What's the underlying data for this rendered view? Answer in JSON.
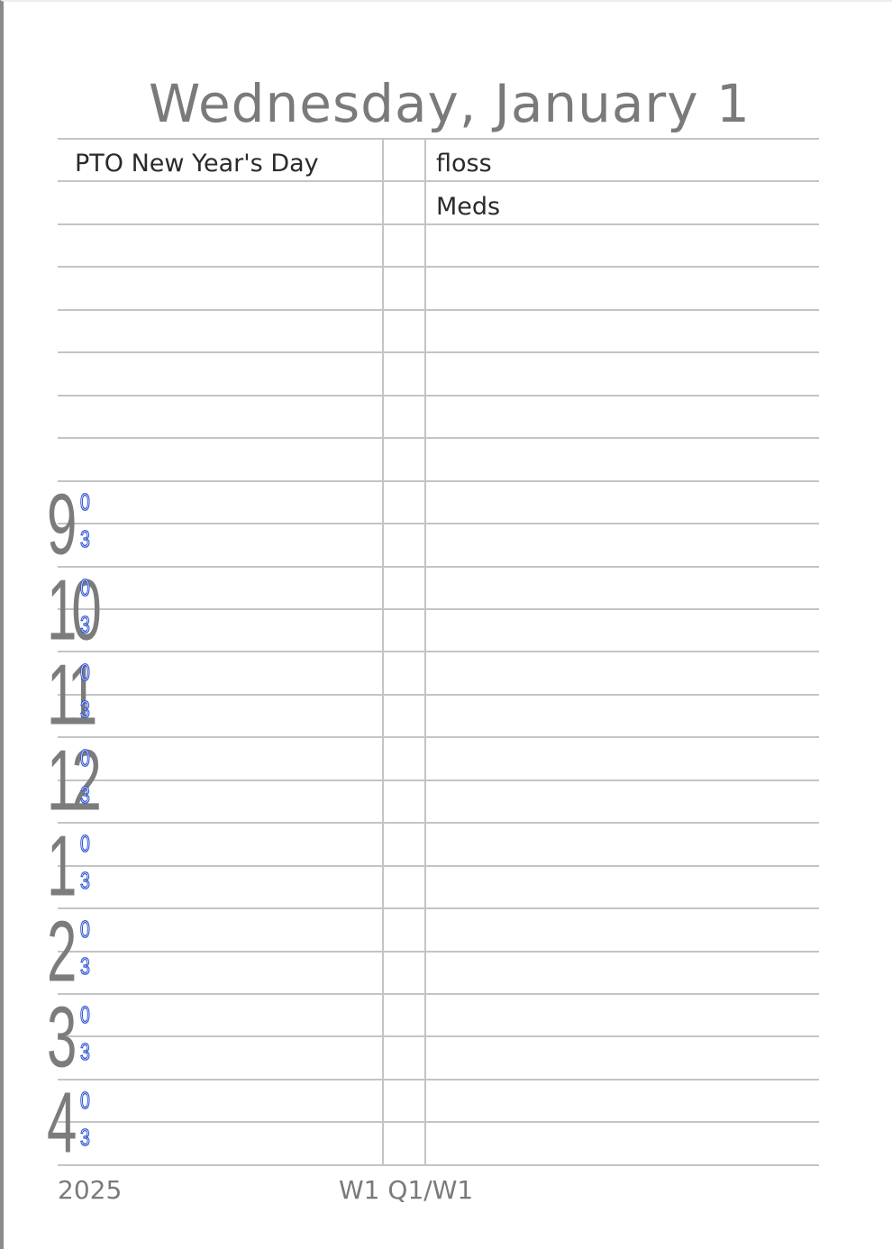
{
  "header": {
    "title": "Wednesday, January 1"
  },
  "entries": {
    "left": [
      "PTO New Year's Day"
    ],
    "right": [
      "floss",
      "Meds"
    ]
  },
  "hours": [
    {
      "hour": "9",
      "marks": [
        "0",
        "3"
      ]
    },
    {
      "hour": "10",
      "marks": [
        "0",
        "3"
      ]
    },
    {
      "hour": "11",
      "marks": [
        "0",
        "3"
      ]
    },
    {
      "hour": "12",
      "marks": [
        "0",
        "3"
      ]
    },
    {
      "hour": "1",
      "marks": [
        "0",
        "3"
      ]
    },
    {
      "hour": "2",
      "marks": [
        "0",
        "3"
      ]
    },
    {
      "hour": "3",
      "marks": [
        "0",
        "3"
      ]
    },
    {
      "hour": "4",
      "marks": [
        "0",
        "3"
      ]
    }
  ],
  "footer": {
    "year": "2025",
    "week": "W1 Q1/W1"
  },
  "colors": {
    "title": "#7a7a7a",
    "rule": "#c4c4c4",
    "hour_numeral": "#7c7c7c",
    "minute_mark": "#2f55d4"
  }
}
